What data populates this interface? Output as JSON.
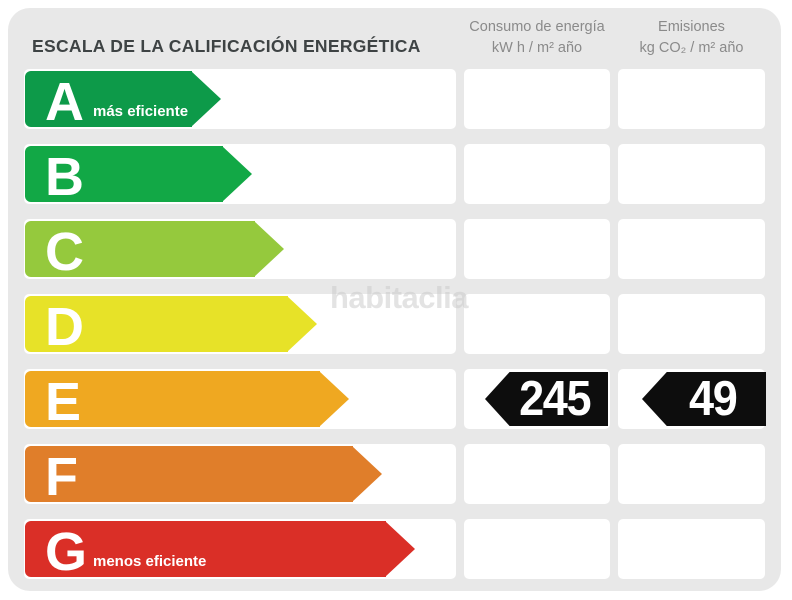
{
  "title": "ESCALA DE LA CALIFICACIÓN ENERGÉTICA",
  "watermark": "habitaclia",
  "columns": {
    "consumption": {
      "title": "Consumo de energía",
      "units": "kW h / m² año"
    },
    "emissions": {
      "title": "Emisiones",
      "units": "kg CO₂ / m² año"
    }
  },
  "scale": {
    "rows": [
      {
        "letter": "A",
        "note": "más eficiente",
        "color": "#0d9a49"
      },
      {
        "letter": "B",
        "color": "#12a846"
      },
      {
        "letter": "C",
        "color": "#95c93d"
      },
      {
        "letter": "D",
        "color": "#e7e228"
      },
      {
        "letter": "E",
        "color": "#efa821"
      },
      {
        "letter": "F",
        "color": "#e07e2a"
      },
      {
        "letter": "G",
        "note": "menos eficiente",
        "color": "#da2f27"
      }
    ],
    "rated_row": "E"
  },
  "values": {
    "consumption": "245",
    "emissions": "49"
  },
  "badge_color": "#0d0d0d",
  "chart_data": {
    "type": "bar",
    "title": "ESCALA DE LA CALIFICACIÓN ENERGÉTICA",
    "categories": [
      "A",
      "B",
      "C",
      "D",
      "E",
      "F",
      "G"
    ],
    "bar_colors": [
      "#0d9a49",
      "#12a846",
      "#95c93d",
      "#e7e228",
      "#efa821",
      "#e07e2a",
      "#da2f27"
    ],
    "rating": "E",
    "series": [
      {
        "name": "Consumo de energía (kW h / m² año)",
        "values": [
          null,
          null,
          null,
          null,
          245,
          null,
          null
        ]
      },
      {
        "name": "Emisiones (kg CO₂ / m² año)",
        "values": [
          null,
          null,
          null,
          null,
          49,
          null,
          null
        ]
      }
    ],
    "annotations": [
      "más eficiente",
      "menos eficiente"
    ],
    "legend_position": "top",
    "grid": false
  }
}
